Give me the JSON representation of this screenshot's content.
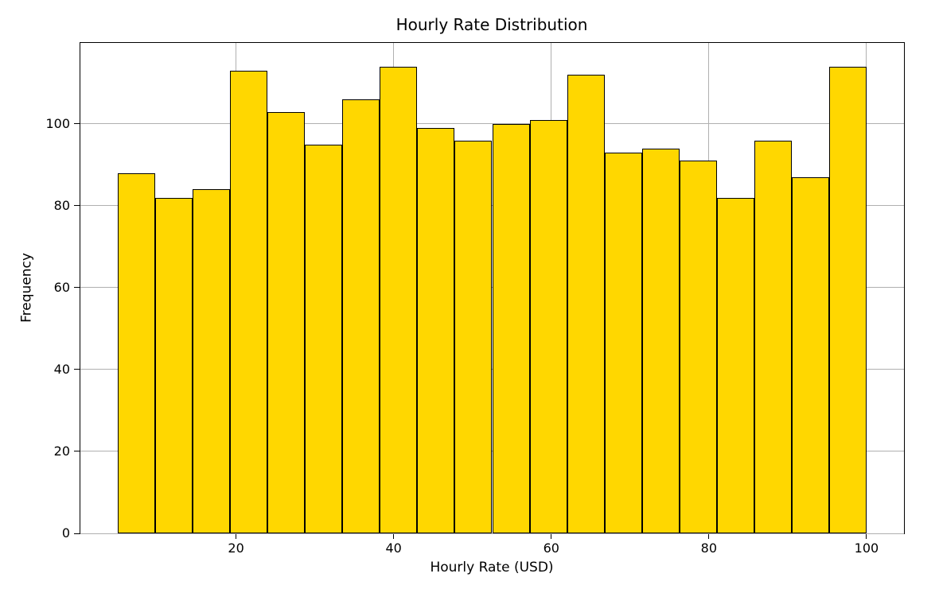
{
  "chart_data": {
    "type": "bar",
    "subtype": "histogram",
    "title": "Hourly Rate Distribution",
    "xlabel": "Hourly Rate (USD)",
    "ylabel": "Frequency",
    "bin_start": 5,
    "bin_end": 100,
    "bin_width": 4.75,
    "bin_count": 20,
    "values": [
      88,
      82,
      84,
      113,
      103,
      95,
      106,
      114,
      99,
      96,
      100,
      101,
      112,
      93,
      94,
      91,
      82,
      96,
      87,
      114
    ],
    "xticks": [
      20,
      40,
      60,
      80,
      100
    ],
    "yticks": [
      0,
      20,
      40,
      60,
      80,
      100
    ],
    "xlim": [
      0.25,
      104.75
    ],
    "ylim": [
      0,
      119.8
    ],
    "grid": true,
    "legend": "none",
    "colors": {
      "bar_fill": "#FFD700",
      "bar_edge": "#000000",
      "grid": "#b0b0b0",
      "axis": "#000000",
      "text": "#000000",
      "background": "#ffffff"
    }
  }
}
